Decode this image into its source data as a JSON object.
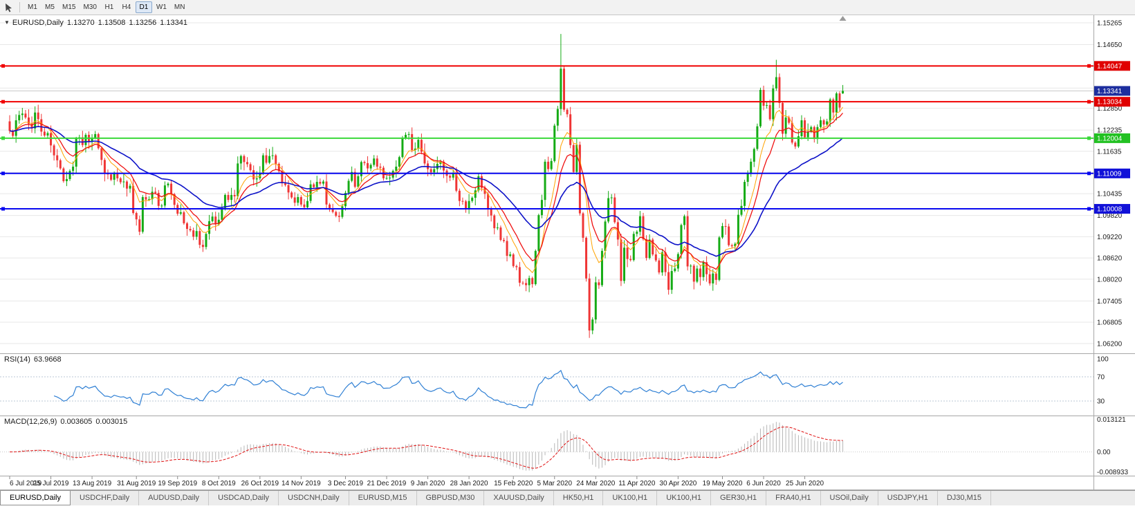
{
  "toolbar": {
    "timeframes": [
      {
        "label": "M1"
      },
      {
        "label": "M5"
      },
      {
        "label": "M15"
      },
      {
        "label": "M30"
      },
      {
        "label": "H1"
      },
      {
        "label": "H4"
      },
      {
        "label": "D1",
        "active": true
      },
      {
        "label": "W1"
      },
      {
        "label": "MN"
      }
    ]
  },
  "readout": {
    "dropdown": "▼",
    "symbol": "EURUSD,Daily",
    "open": "1.13270",
    "high": "1.13508",
    "low": "1.13256",
    "close": "1.13341"
  },
  "rsi_panel": {
    "title": "RSI(14)",
    "value": "63.9668"
  },
  "macd_panel": {
    "title": "MACD(12,26,9)",
    "main_value": "0.003605",
    "signal_value": "0.003015"
  },
  "tabs": [
    {
      "label": "EURUSD,Daily",
      "active": true
    },
    {
      "label": "USDCHF,Daily"
    },
    {
      "label": "AUDUSD,Daily"
    },
    {
      "label": "USDCAD,Daily"
    },
    {
      "label": "USDCNH,Daily"
    },
    {
      "label": "EURUSD,M15"
    },
    {
      "label": "GBPUSD,M30"
    },
    {
      "label": "XAUUSD,Daily"
    },
    {
      "label": "HK50,H1"
    },
    {
      "label": "UK100,H1"
    },
    {
      "label": "UK100,H1"
    },
    {
      "label": "GER30,H1"
    },
    {
      "label": "FRA40,H1"
    },
    {
      "label": "USOil,Daily"
    },
    {
      "label": "USDJPY,H1"
    },
    {
      "label": "DJ30,M15"
    }
  ],
  "chart_data": {
    "type": "candlestick",
    "symbol": "EURUSD",
    "period": "Daily",
    "visible_price_range": [
      1.059,
      1.155
    ],
    "style": {
      "up_color": "#15ab15",
      "down_color": "#ef3535",
      "rsi_color": "#2e7fd4",
      "macd_hist_color": "#b6b6b6",
      "macd_signal_color": "#e01010"
    },
    "price_axis": {
      "ticks": [
        {
          "value": 1.15265,
          "label": "1.15265"
        },
        {
          "value": 1.1465,
          "label": "1.14650"
        },
        {
          "value": 1.1285,
          "label": "1.12850"
        },
        {
          "value": 1.12235,
          "label": "1.12235"
        },
        {
          "value": 1.11635,
          "label": "1.11635"
        },
        {
          "value": 1.10435,
          "label": "1.10435"
        },
        {
          "value": 1.0982,
          "label": "1.09820"
        },
        {
          "value": 1.0922,
          "label": "1.09220"
        },
        {
          "value": 1.0862,
          "label": "1.08620"
        },
        {
          "value": 1.0802,
          "label": "1.08020"
        },
        {
          "value": 1.07405,
          "label": "1.07405"
        },
        {
          "value": 1.06805,
          "label": "1.06805"
        },
        {
          "value": 1.062,
          "label": "1.06200"
        }
      ],
      "grid_extra": [
        1.14035,
        1.1342,
        1.11035
      ]
    },
    "current_price": {
      "value": 1.13341,
      "label": "1.13341",
      "color": "#1d2e9e"
    },
    "hlines": [
      {
        "price": 1.14047,
        "label": "1.14047",
        "color": "#f00000",
        "badge": "#e00000",
        "width": 2
      },
      {
        "price": 1.13034,
        "label": "1.13034",
        "color": "#f00000",
        "badge": "#e00000",
        "width": 2
      },
      {
        "price": 1.12004,
        "label": "1.12004",
        "color": "#39d839",
        "badge": "#22c122",
        "width": 2
      },
      {
        "price": 1.11009,
        "label": "1.11009",
        "color": "#0808f0",
        "badge": "#1111d8",
        "width": 2
      },
      {
        "price": 1.10008,
        "label": "1.10008",
        "color": "#0808f0",
        "badge": "#1111d8",
        "width": 2
      }
    ],
    "moving_averages": [
      {
        "period": 8,
        "color": "#ffa200",
        "width": 1
      },
      {
        "period": 13,
        "color": "#ef1010",
        "width": 1.3
      },
      {
        "period": 34,
        "color": "#0d12c8",
        "width": 1.6
      }
    ],
    "candles": {
      "first_open": 1.1248,
      "closes": [
        1.1221,
        1.1207,
        1.1251,
        1.1266,
        1.127,
        1.1259,
        1.1241,
        1.1228,
        1.1273,
        1.1254,
        1.1219,
        1.1208,
        1.1215,
        1.118,
        1.1152,
        1.1138,
        1.1115,
        1.1079,
        1.1085,
        1.1108,
        1.112,
        1.12,
        1.1203,
        1.1181,
        1.121,
        1.119,
        1.1201,
        1.1212,
        1.1172,
        1.1139,
        1.11,
        1.1098,
        1.1083,
        1.11,
        1.1087,
        1.1076,
        1.1078,
        1.1058,
        1.1066,
        1.0989,
        1.0971,
        1.0936,
        1.1034,
        1.1027,
        1.1028,
        1.1049,
        1.1046,
        1.1009,
        1.101,
        1.1067,
        1.1072,
        1.1042,
        1.1012,
        1.0987,
        1.0991,
        1.096,
        1.0944,
        1.094,
        1.0922,
        1.0938,
        1.0899,
        1.0893,
        1.093,
        1.0966,
        1.0979,
        1.0957,
        1.097,
        1.1003,
        1.104,
        1.1026,
        1.104,
        1.1036,
        1.1129,
        1.115,
        1.1133,
        1.1127,
        1.111,
        1.1084,
        1.1087,
        1.1102,
        1.1152,
        1.1131,
        1.115,
        1.1152,
        1.1128,
        1.1107,
        1.1073,
        1.1068,
        1.1047,
        1.1033,
        1.1018,
        1.1034,
        1.1013,
        1.1005,
        1.1023,
        1.107,
        1.1062,
        1.1077,
        1.1072,
        1.1078,
        1.1013,
        1.1,
        1.0992,
        1.0981,
        1.0978,
        1.1008,
        1.1046,
        1.108,
        1.1105,
        1.1063,
        1.1093,
        1.1133,
        1.113,
        1.1115,
        1.1125,
        1.1143,
        1.112,
        1.1117,
        1.1087,
        1.1088,
        1.1089,
        1.1108,
        1.112,
        1.1147,
        1.12,
        1.121,
        1.1212,
        1.1167,
        1.1171,
        1.1196,
        1.1162,
        1.1129,
        1.1113,
        1.1104,
        1.1113,
        1.1128,
        1.1134,
        1.1109,
        1.1094,
        1.1089,
        1.1102,
        1.1052,
        1.1023,
        1.1022,
        1.1001,
        1.1023,
        1.1032,
        1.1053,
        1.1093,
        1.106,
        1.1043,
        1.1001,
        1.0982,
        1.0946,
        1.0948,
        1.0913,
        1.091,
        1.0868,
        1.0872,
        1.0839,
        1.0836,
        1.0792,
        1.0791,
        1.0785,
        1.0805,
        1.0788,
        1.0882,
        1.0983,
        1.1026,
        1.1134,
        1.1113,
        1.1136,
        1.1236,
        1.1283,
        1.1397,
        1.1281,
        1.1268,
        1.1181,
        1.1105,
        1.1182,
        1.0988,
        1.0919,
        1.0804,
        1.0657,
        1.0688,
        1.0793,
        1.0785,
        1.0882,
        1.0965,
        1.1031,
        1.1033,
        1.0963,
        1.0914,
        1.0797,
        1.0891,
        1.0859,
        1.0856,
        1.093,
        1.0936,
        1.098,
        1.0915,
        1.0862,
        1.0914,
        1.0872,
        1.0855,
        1.0821,
        1.0878,
        1.0822,
        1.0772,
        1.0825,
        1.0832,
        1.0873,
        1.0955,
        1.098,
        1.0838,
        1.084,
        1.0795,
        1.0832,
        1.0808,
        1.085,
        1.0816,
        1.079,
        1.0818,
        1.08,
        1.092,
        1.0952,
        1.0951,
        1.0898,
        1.0895,
        1.0902,
        1.0984,
        1.1009,
        1.1077,
        1.1101,
        1.1134,
        1.117,
        1.1234,
        1.1337,
        1.1292,
        1.1294,
        1.1254,
        1.1341,
        1.1373,
        1.13,
        1.1213,
        1.1259,
        1.1244,
        1.1188,
        1.1177,
        1.1206,
        1.1251,
        1.1203,
        1.1219,
        1.1232,
        1.1198,
        1.1232,
        1.1251,
        1.1239,
        1.1248,
        1.131,
        1.1273,
        1.1327,
        1.1287,
        1.13341
      ],
      "overrides": {
        "61": {
          "low": 1.0879
        },
        "165": {
          "low": 1.0778
        },
        "174": {
          "high": 1.1495
        },
        "183": {
          "low": 1.0636
        },
        "242": {
          "high": 1.1422
        },
        "263": {
          "open": 1.1327,
          "high": 1.13508,
          "low": 1.13256
        }
      }
    },
    "indicators": {
      "rsi": {
        "period": 14,
        "current": 63.9668,
        "levels": [
          70,
          30
        ],
        "axis_labels": [
          "100",
          "70",
          "30"
        ]
      },
      "macd": {
        "fast": 12,
        "slow": 26,
        "signal_period": 9,
        "current_main": 0.003605,
        "current_signal": 0.003015,
        "axis_max": 0.013121,
        "axis_min": -0.008933,
        "axis_max_label": "0.013121",
        "axis_zero_label": "0.00",
        "axis_min_label": "-0.008933"
      }
    },
    "time_axis": {
      "last_label_index": 251,
      "labels": [
        "6 Jul 2019",
        "25 Jul 2019",
        "13 Aug 2019",
        "31 Aug 2019",
        "19 Sep 2019",
        "8 Oct 2019",
        "26 Oct 2019",
        "14 Nov 2019",
        "3 Dec 2019",
        "21 Dec 2019",
        "9 Jan 2020",
        "28 Jan 2020",
        "15 Feb 2020",
        "5 Mar 2020",
        "24 Mar 2020",
        "11 Apr 2020",
        "30 Apr 2020",
        "19 May 2020",
        "6 Jun 2020",
        "25 Jun 2020"
      ]
    }
  }
}
